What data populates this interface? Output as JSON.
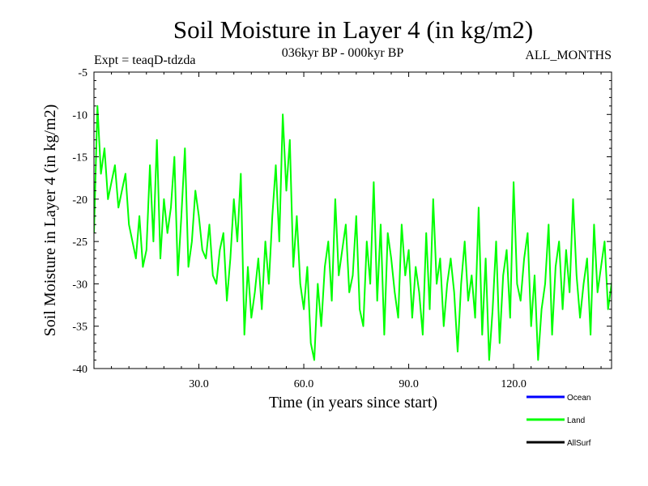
{
  "chart_data": {
    "type": "line",
    "title": "Soil Moisture in Layer 4 (in kg/m2)",
    "subtitle_left": "Expt = teaqD-tdzda",
    "subtitle_center": "036kyr BP - 000kyr BP",
    "subtitle_right": "ALL_MONTHS",
    "xlabel": "Time (in years since start)",
    "ylabel": "Soil Moisture in Layer 4 (in kg/m2)",
    "xlim": [
      0,
      148
    ],
    "ylim": [
      -40,
      -5
    ],
    "x_ticks": [
      30,
      60,
      90,
      120
    ],
    "x_tick_labels": [
      "30.0",
      "60.0",
      "90.0",
      "120.0"
    ],
    "y_ticks": [
      -5,
      -10,
      -15,
      -20,
      -25,
      -30,
      -35,
      -40
    ],
    "y_tick_labels": [
      "-5",
      "-10",
      "-15",
      "-20",
      "-25",
      "-30",
      "-35",
      "-40"
    ],
    "legend_position": "bottom-right",
    "series": [
      {
        "name": "Ocean",
        "label": "Ocean",
        "color": "#0000ff",
        "values": []
      },
      {
        "name": "Land",
        "label": "Land",
        "color": "#00ff00",
        "x_start": 0,
        "x_step": 1,
        "values": [
          -24,
          -9,
          -17,
          -14,
          -20,
          -18,
          -16,
          -21,
          -19,
          -17,
          -23,
          -25,
          -27,
          -22,
          -28,
          -26,
          -16,
          -25,
          -13,
          -27,
          -20,
          -24,
          -21,
          -15,
          -29,
          -22,
          -14,
          -28,
          -25,
          -19,
          -22,
          -26,
          -27,
          -23,
          -29,
          -30,
          -26,
          -24,
          -32,
          -27,
          -20,
          -25,
          -17,
          -36,
          -28,
          -34,
          -31,
          -27,
          -33,
          -25,
          -30,
          -22,
          -16,
          -25,
          -10,
          -19,
          -13,
          -28,
          -22,
          -30,
          -33,
          -28,
          -37,
          -39,
          -30,
          -35,
          -28,
          -25,
          -32,
          -20,
          -29,
          -26,
          -23,
          -31,
          -29,
          -22,
          -33,
          -35,
          -25,
          -30,
          -18,
          -32,
          -23,
          -36,
          -24,
          -27,
          -31,
          -34,
          -23,
          -29,
          -26,
          -34,
          -28,
          -31,
          -36,
          -24,
          -33,
          -20,
          -30,
          -27,
          -35,
          -30,
          -27,
          -31,
          -38,
          -30,
          -25,
          -32,
          -29,
          -34,
          -21,
          -36,
          -27,
          -39,
          -33,
          -25,
          -37,
          -29,
          -26,
          -34,
          -18,
          -30,
          -32,
          -27,
          -24,
          -35,
          -29,
          -39,
          -33,
          -30,
          -23,
          -36,
          -28,
          -25,
          -33,
          -26,
          -31,
          -20,
          -29,
          -34,
          -30,
          -27,
          -36,
          -23,
          -31,
          -28,
          -25,
          -33,
          -30,
          -28
        ]
      },
      {
        "name": "AllSurf",
        "label": "AllSurf",
        "color": "#000000",
        "values": []
      }
    ]
  }
}
